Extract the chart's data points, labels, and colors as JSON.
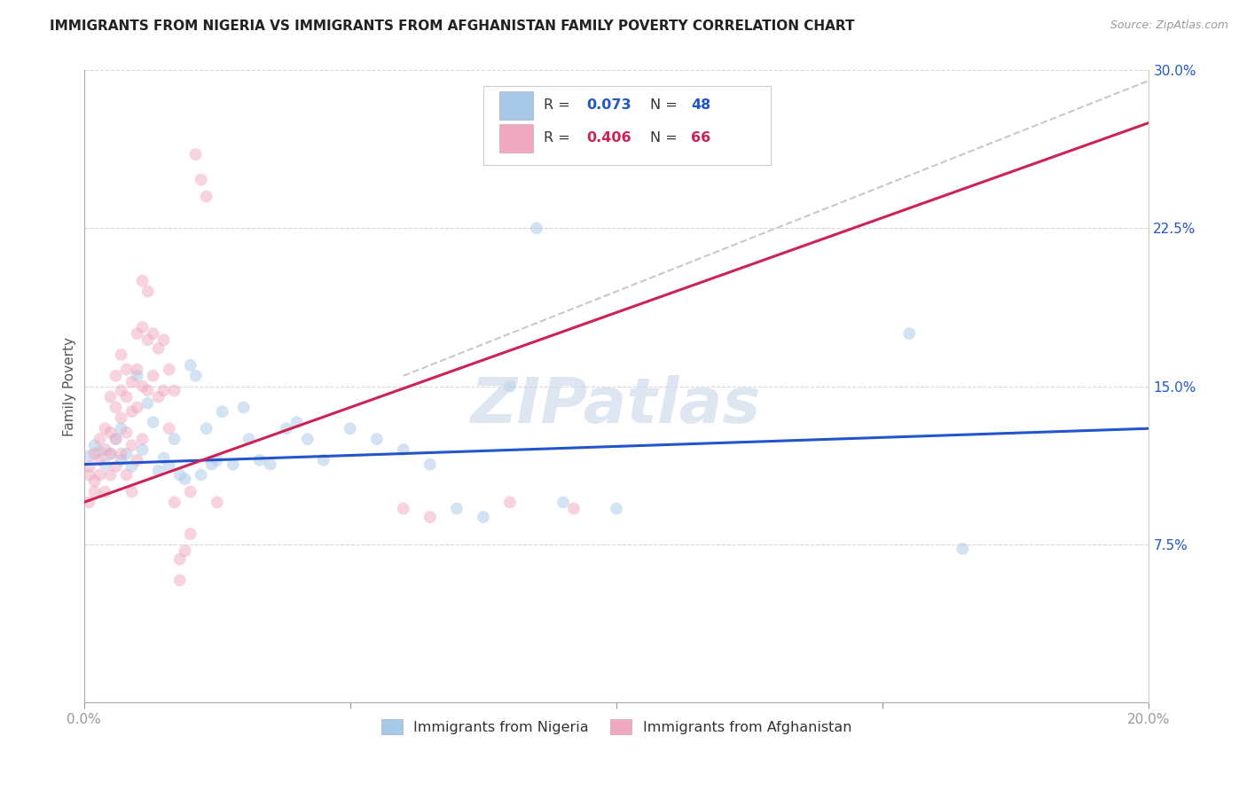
{
  "title": "IMMIGRANTS FROM NIGERIA VS IMMIGRANTS FROM AFGHANISTAN FAMILY POVERTY CORRELATION CHART",
  "source": "Source: ZipAtlas.com",
  "ylabel": "Family Poverty",
  "xlim": [
    0.0,
    0.2
  ],
  "ylim": [
    0.0,
    0.3
  ],
  "nigeria_color": "#a8c8e8",
  "afghanistan_color": "#f0a8c0",
  "nigeria_line_color": "#2255cc",
  "afghanistan_line_color": "#cc2255",
  "diagonal_line_color": "#c8c8c8",
  "background_color": "#ffffff",
  "grid_color": "#d8d8d8",
  "title_color": "#222222",
  "nigeria_scatter": [
    [
      0.001,
      0.117
    ],
    [
      0.002,
      0.122
    ],
    [
      0.003,
      0.119
    ],
    [
      0.004,
      0.113
    ],
    [
      0.005,
      0.118
    ],
    [
      0.006,
      0.125
    ],
    [
      0.007,
      0.115
    ],
    [
      0.007,
      0.13
    ],
    [
      0.008,
      0.118
    ],
    [
      0.009,
      0.112
    ],
    [
      0.01,
      0.155
    ],
    [
      0.011,
      0.12
    ],
    [
      0.012,
      0.142
    ],
    [
      0.013,
      0.133
    ],
    [
      0.014,
      0.11
    ],
    [
      0.015,
      0.116
    ],
    [
      0.016,
      0.112
    ],
    [
      0.017,
      0.125
    ],
    [
      0.018,
      0.108
    ],
    [
      0.019,
      0.106
    ],
    [
      0.02,
      0.16
    ],
    [
      0.021,
      0.155
    ],
    [
      0.022,
      0.108
    ],
    [
      0.023,
      0.13
    ],
    [
      0.024,
      0.113
    ],
    [
      0.025,
      0.115
    ],
    [
      0.026,
      0.138
    ],
    [
      0.028,
      0.113
    ],
    [
      0.03,
      0.14
    ],
    [
      0.031,
      0.125
    ],
    [
      0.033,
      0.115
    ],
    [
      0.035,
      0.113
    ],
    [
      0.038,
      0.13
    ],
    [
      0.04,
      0.133
    ],
    [
      0.042,
      0.125
    ],
    [
      0.045,
      0.115
    ],
    [
      0.05,
      0.13
    ],
    [
      0.055,
      0.125
    ],
    [
      0.06,
      0.12
    ],
    [
      0.065,
      0.113
    ],
    [
      0.07,
      0.092
    ],
    [
      0.075,
      0.088
    ],
    [
      0.08,
      0.15
    ],
    [
      0.085,
      0.225
    ],
    [
      0.09,
      0.095
    ],
    [
      0.1,
      0.092
    ],
    [
      0.155,
      0.175
    ],
    [
      0.165,
      0.073
    ]
  ],
  "afghanistan_scatter": [
    [
      0.001,
      0.112
    ],
    [
      0.001,
      0.108
    ],
    [
      0.001,
      0.095
    ],
    [
      0.002,
      0.118
    ],
    [
      0.002,
      0.105
    ],
    [
      0.002,
      0.1
    ],
    [
      0.003,
      0.125
    ],
    [
      0.003,
      0.115
    ],
    [
      0.003,
      0.108
    ],
    [
      0.004,
      0.13
    ],
    [
      0.004,
      0.12
    ],
    [
      0.004,
      0.1
    ],
    [
      0.005,
      0.145
    ],
    [
      0.005,
      0.128
    ],
    [
      0.005,
      0.118
    ],
    [
      0.005,
      0.108
    ],
    [
      0.006,
      0.155
    ],
    [
      0.006,
      0.14
    ],
    [
      0.006,
      0.125
    ],
    [
      0.006,
      0.112
    ],
    [
      0.007,
      0.165
    ],
    [
      0.007,
      0.148
    ],
    [
      0.007,
      0.135
    ],
    [
      0.007,
      0.118
    ],
    [
      0.008,
      0.158
    ],
    [
      0.008,
      0.145
    ],
    [
      0.008,
      0.128
    ],
    [
      0.008,
      0.108
    ],
    [
      0.009,
      0.152
    ],
    [
      0.009,
      0.138
    ],
    [
      0.009,
      0.122
    ],
    [
      0.009,
      0.1
    ],
    [
      0.01,
      0.175
    ],
    [
      0.01,
      0.158
    ],
    [
      0.01,
      0.14
    ],
    [
      0.01,
      0.115
    ],
    [
      0.011,
      0.2
    ],
    [
      0.011,
      0.178
    ],
    [
      0.011,
      0.15
    ],
    [
      0.011,
      0.125
    ],
    [
      0.012,
      0.195
    ],
    [
      0.012,
      0.172
    ],
    [
      0.012,
      0.148
    ],
    [
      0.013,
      0.175
    ],
    [
      0.013,
      0.155
    ],
    [
      0.014,
      0.168
    ],
    [
      0.014,
      0.145
    ],
    [
      0.015,
      0.172
    ],
    [
      0.015,
      0.148
    ],
    [
      0.016,
      0.158
    ],
    [
      0.016,
      0.13
    ],
    [
      0.017,
      0.148
    ],
    [
      0.017,
      0.095
    ],
    [
      0.018,
      0.068
    ],
    [
      0.018,
      0.058
    ],
    [
      0.019,
      0.072
    ],
    [
      0.02,
      0.1
    ],
    [
      0.02,
      0.08
    ],
    [
      0.021,
      0.26
    ],
    [
      0.022,
      0.248
    ],
    [
      0.023,
      0.24
    ],
    [
      0.025,
      0.095
    ],
    [
      0.06,
      0.092
    ],
    [
      0.065,
      0.088
    ],
    [
      0.08,
      0.095
    ],
    [
      0.092,
      0.092
    ]
  ],
  "nigeria_line": {
    "x0": 0.0,
    "y0": 0.113,
    "x1": 0.2,
    "y1": 0.13
  },
  "afghanistan_line": {
    "x0": 0.0,
    "y0": 0.095,
    "x1": 0.2,
    "y1": 0.275
  },
  "diagonal_line": {
    "x0": 0.06,
    "y0": 0.155,
    "x1": 0.2,
    "y1": 0.295
  },
  "marker_size": 100,
  "marker_alpha": 0.5,
  "legend_labels_bottom": [
    "Immigrants from Nigeria",
    "Immigrants from Afghanistan"
  ]
}
